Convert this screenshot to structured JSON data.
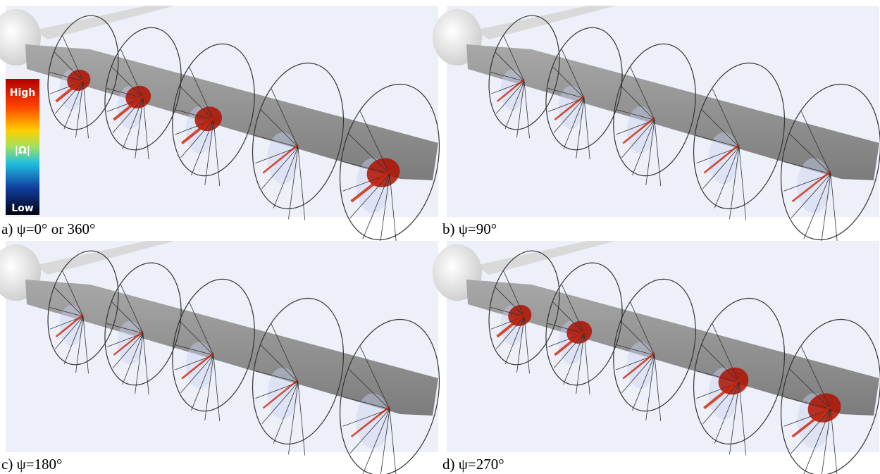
{
  "panels": [
    {
      "caption": "a) ψ=0° or 360°"
    },
    {
      "caption": "b) ψ=90°"
    },
    {
      "caption": "c) ψ=180°"
    },
    {
      "caption": "d) ψ=270°"
    }
  ],
  "legend": {
    "high": "High",
    "quantity": "|Ω|",
    "low": "Low"
  }
}
